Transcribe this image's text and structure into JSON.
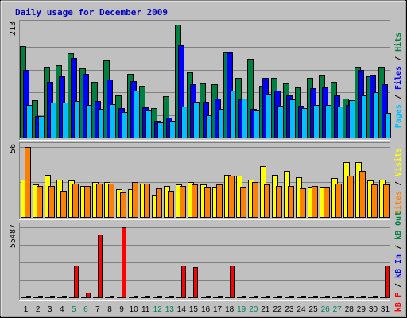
{
  "chart_data": [
    {
      "type": "bar",
      "title": "Daily usage for December 2009",
      "ymax_label": "213",
      "ylim": [
        0,
        213
      ],
      "categories": [
        "1",
        "2",
        "3",
        "4",
        "5",
        "6",
        "7",
        "8",
        "9",
        "10",
        "11",
        "12",
        "13",
        "14",
        "15",
        "16",
        "17",
        "18",
        "19",
        "20",
        "21",
        "22",
        "23",
        "24",
        "25",
        "26",
        "27",
        "28",
        "29",
        "30",
        "31"
      ],
      "series": [
        {
          "name": "Hits",
          "color": "#008040",
          "values": [
            172,
            70,
            134,
            136,
            159,
            130,
            105,
            146,
            80,
            120,
            98,
            56,
            78,
            213,
            123,
            102,
            100,
            160,
            112,
            148,
            98,
            112,
            102,
            95,
            112,
            118,
            105,
            73,
            133,
            116,
            134
          ]
        },
        {
          "name": "Files",
          "color": "#0000ff",
          "values": [
            127,
            40,
            105,
            115,
            150,
            120,
            69,
            110,
            56,
            106,
            57,
            31,
            38,
            174,
            101,
            67,
            74,
            160,
            72,
            54,
            112,
            88,
            80,
            60,
            93,
            95,
            79,
            62,
            128,
            118,
            100
          ]
        },
        {
          "name": "Pages",
          "color": "#00c0ff",
          "values": [
            62,
            40,
            66,
            66,
            69,
            62,
            54,
            63,
            48,
            88,
            53,
            29,
            32,
            58,
            68,
            42,
            54,
            89,
            73,
            53,
            82,
            60,
            72,
            55,
            62,
            61,
            59,
            70,
            80,
            85,
            46
          ]
        }
      ]
    },
    {
      "type": "bar",
      "ymax_label": "56",
      "ylim": [
        0,
        56
      ],
      "categories": [
        "1",
        "2",
        "3",
        "4",
        "5",
        "6",
        "7",
        "8",
        "9",
        "10",
        "11",
        "12",
        "13",
        "14",
        "15",
        "16",
        "17",
        "18",
        "19",
        "20",
        "21",
        "22",
        "23",
        "24",
        "25",
        "26",
        "27",
        "28",
        "29",
        "30",
        "31"
      ],
      "series": [
        {
          "name": "Visits",
          "color": "#ffff00",
          "values": [
            30,
            26,
            34,
            30,
            29,
            25,
            28,
            28,
            22,
            22,
            27,
            18,
            25,
            26,
            28,
            26,
            24,
            34,
            33,
            30,
            41,
            34,
            37,
            32,
            24,
            24,
            31,
            44,
            44,
            29,
            30
          ]
        },
        {
          "name": "Sites",
          "color": "#ff8000",
          "values": [
            56,
            25,
            25,
            21,
            27,
            25,
            27,
            27,
            20,
            28,
            27,
            23,
            21,
            25,
            26,
            24,
            26,
            33,
            24,
            28,
            26,
            25,
            25,
            23,
            25,
            24,
            27,
            33,
            37,
            26,
            26
          ]
        }
      ]
    },
    {
      "type": "bar",
      "ymax_label": "55487",
      "ylim": [
        0,
        55487
      ],
      "categories": [
        "1",
        "2",
        "3",
        "4",
        "5",
        "6",
        "7",
        "8",
        "9",
        "10",
        "11",
        "12",
        "13",
        "14",
        "15",
        "16",
        "17",
        "18",
        "19",
        "20",
        "21",
        "22",
        "23",
        "24",
        "25",
        "26",
        "27",
        "28",
        "29",
        "30",
        "31"
      ],
      "series": [
        {
          "name": "kB Out",
          "color": "#ff8000",
          "values": [
            0,
            0,
            0,
            0,
            0,
            0,
            0,
            0,
            0,
            0,
            0,
            0,
            0,
            0,
            0,
            0,
            0,
            0,
            0,
            0,
            0,
            0,
            0,
            0,
            0,
            0,
            0,
            0,
            0,
            0,
            0
          ]
        },
        {
          "name": "kB In",
          "color": "#0000ff",
          "values": [
            0,
            0,
            0,
            0,
            0,
            0,
            0,
            0,
            0,
            0,
            0,
            0,
            0,
            0,
            0,
            0,
            0,
            0,
            0,
            0,
            0,
            0,
            0,
            0,
            0,
            0,
            0,
            0,
            0,
            0,
            0
          ]
        },
        {
          "name": "kB F",
          "color": "#ff0000",
          "values": [
            1000,
            1000,
            1500,
            1000,
            25500,
            3500,
            50000,
            1000,
            55487,
            1000,
            1000,
            1000,
            1000,
            25500,
            24000,
            1000,
            1000,
            25500,
            1000,
            1000,
            1500,
            1000,
            1000,
            1000,
            1000,
            1500,
            1000,
            1000,
            1000,
            1000,
            25500
          ]
        }
      ]
    }
  ],
  "side_labels": [
    {
      "parts": [
        {
          "text": "Pages",
          "color": "#00c0ff"
        },
        {
          "text": " / ",
          "color": "#000000"
        },
        {
          "text": "Files",
          "color": "#0000ff"
        },
        {
          "text": " / ",
          "color": "#000000"
        },
        {
          "text": "Hits",
          "color": "#008040"
        }
      ]
    },
    {
      "parts": [
        {
          "text": "Sites",
          "color": "#ff8000"
        },
        {
          "text": " / ",
          "color": "#000000"
        },
        {
          "text": "Visits",
          "color": "#ffff00"
        }
      ]
    },
    {
      "parts": [
        {
          "text": "kB F",
          "color": "#ff0000"
        },
        {
          "text": " / ",
          "color": "#000000"
        },
        {
          "text": "kB In",
          "color": "#0000ff"
        },
        {
          "text": " / ",
          "color": "#000000"
        },
        {
          "text": "kB Out",
          "color": "#008040"
        }
      ]
    }
  ],
  "weekend_days": [
    "5",
    "6",
    "12",
    "13",
    "19",
    "20",
    "26",
    "27"
  ],
  "colors": {
    "weekday_label": "#000000",
    "weekend_label": "#00805c",
    "panel_bg": "#c0c0c0",
    "grid": "#808080"
  }
}
